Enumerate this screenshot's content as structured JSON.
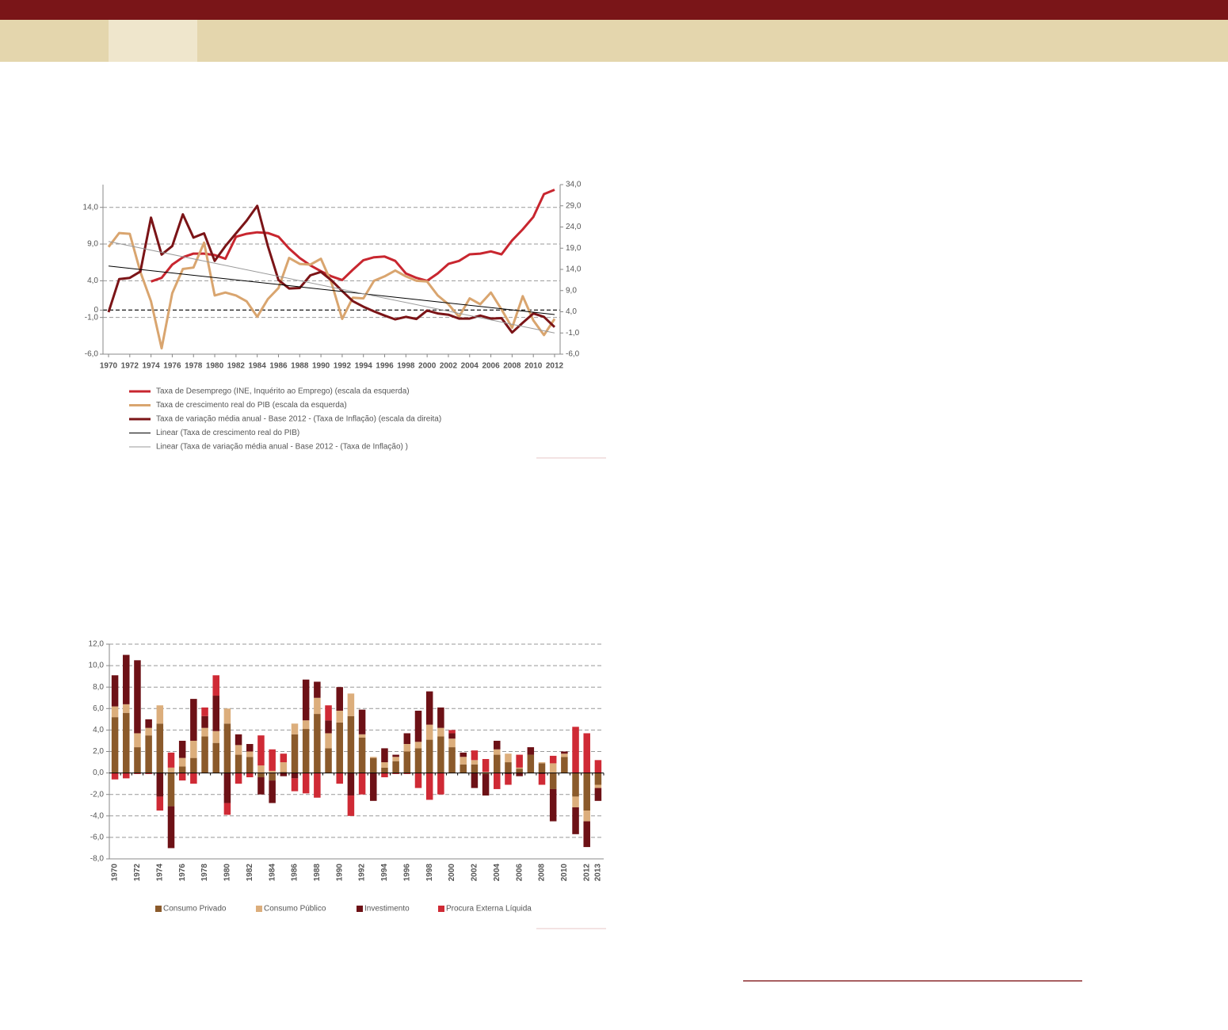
{
  "chart_data": [
    {
      "type": "line",
      "x": [
        1970,
        1971,
        1972,
        1973,
        1974,
        1975,
        1976,
        1977,
        1978,
        1979,
        1980,
        1981,
        1982,
        1983,
        1984,
        1985,
        1986,
        1987,
        1988,
        1989,
        1990,
        1991,
        1992,
        1993,
        1994,
        1995,
        1996,
        1997,
        1998,
        1999,
        2000,
        2001,
        2002,
        2003,
        2004,
        2005,
        2006,
        2007,
        2008,
        2009,
        2010,
        2011,
        2012
      ],
      "xlim": [
        1970,
        2012
      ],
      "xticks": [
        1970,
        1972,
        1974,
        1976,
        1978,
        1980,
        1982,
        1984,
        1986,
        1988,
        1990,
        1992,
        1994,
        1996,
        1998,
        2000,
        2002,
        2004,
        2006,
        2008,
        2010,
        2012
      ],
      "ylim": [
        -6,
        17.1
      ],
      "yticks": [
        {
          "value": -6,
          "label": "-6,0"
        },
        {
          "value": -1,
          "label": "-1,0"
        },
        0,
        {
          "value": 4,
          "label": "4,0"
        },
        {
          "value": 9,
          "label": "9,0"
        },
        {
          "value": 14,
          "label": "14,0"
        }
      ],
      "y2lim": [
        -6,
        34
      ],
      "y2ticks": [
        {
          "value": -6,
          "label": "-6,0"
        },
        {
          "value": -1,
          "label": "-1,0"
        },
        {
          "value": 4,
          "label": "4,0"
        },
        {
          "value": 9,
          "label": "9,0"
        },
        {
          "value": 14,
          "label": "14,0"
        },
        {
          "value": 19,
          "label": "19,0"
        },
        {
          "value": 24,
          "label": "24,0"
        },
        {
          "value": 29,
          "label": "29,0"
        },
        {
          "value": 34,
          "label": "34,0"
        }
      ],
      "grid": true,
      "series": [
        {
          "name": "Taxa de Desemprego (INE, Inquérito ao Emprego) (escala da esquerda)",
          "color": "#c8262f",
          "width": 3,
          "values": [
            null,
            null,
            null,
            null,
            3.9,
            4.4,
            6.2,
            7.2,
            7.7,
            7.7,
            7.5,
            7.0,
            10.0,
            10.4,
            10.6,
            10.5,
            10.0,
            8.4,
            7.1,
            6.1,
            5.3,
            4.6,
            4.1,
            5.5,
            6.8,
            7.2,
            7.3,
            6.7,
            5.0,
            4.4,
            4.0,
            5.0,
            6.3,
            6.7,
            7.6,
            7.7,
            8.0,
            7.6,
            9.5,
            11.0,
            12.7,
            15.8,
            16.4
          ]
        },
        {
          "name": "Taxa de crescimento real do PIB (escala da esquerda)",
          "color": "#d9a56f",
          "width": 3,
          "values": [
            8.6,
            10.5,
            10.4,
            5.2,
            1.2,
            -5.2,
            2.3,
            5.6,
            5.8,
            9.2,
            2.0,
            2.4,
            2.0,
            1.2,
            -0.9,
            1.5,
            3.0,
            7.1,
            6.3,
            6.2,
            7.0,
            3.7,
            -1.2,
            1.7,
            1.6,
            4.0,
            4.6,
            5.4,
            4.6,
            4.0,
            3.9,
            2.0,
            0.8,
            -0.9,
            1.6,
            0.8,
            2.4,
            0.1,
            -2.4,
            1.9,
            -1.4,
            -3.4,
            -1.2
          ]
        },
        {
          "name": "Taxa de variação média anual - Base 2012 - (Taxa de Inflação) (escala da direita)",
          "color": "#7b1417",
          "width": 3,
          "axis": "y2",
          "values": [
            3.9,
            11.7,
            12.0,
            13.5,
            26.2,
            17.5,
            19.5,
            27.0,
            21.5,
            22.5,
            16.0,
            19.5,
            22.5,
            25.5,
            29.0,
            19.5,
            11.5,
            9.5,
            9.6,
            12.6,
            13.4,
            11.4,
            8.9,
            6.5,
            5.2,
            4.1,
            3.1,
            2.2,
            2.8,
            2.3,
            4.3,
            3.6,
            3.3,
            2.4,
            2.4,
            3.1,
            2.4,
            2.5,
            -0.9,
            1.4,
            3.6,
            2.8,
            0.4
          ]
        },
        {
          "name": "Linear (Taxa de crescimento real do PIB)",
          "color": "#000000",
          "width": 1,
          "x": [
            1970,
            2012
          ],
          "values": [
            6.0,
            -0.6
          ]
        },
        {
          "name": "Linear (Taxa de variação média anual - Base 2012 - (Taxa de Inflação) )",
          "color": "#999999",
          "width": 1,
          "axis": "y2",
          "x": [
            1970,
            2012
          ],
          "values": [
            20.6,
            -1.0
          ]
        }
      ]
    },
    {
      "type": "stacked_bar",
      "categories": [
        "1970",
        null,
        "1972",
        null,
        "1974",
        null,
        "1976",
        null,
        "1978",
        null,
        "1980",
        null,
        "1982",
        null,
        "1984",
        null,
        "1986",
        null,
        "1988",
        null,
        "1990",
        null,
        "1992",
        null,
        "1994",
        null,
        "1996",
        null,
        "1998",
        null,
        "2000",
        null,
        "2002",
        null,
        "2004",
        null,
        "2006",
        null,
        "2008",
        null,
        "2010",
        null,
        "2012",
        "2013"
      ],
      "ylim": [
        -8,
        12
      ],
      "yticks": [
        {
          "value": -8,
          "label": "-8,0"
        },
        {
          "value": -6,
          "label": "-6,0"
        },
        {
          "value": -4,
          "label": "-4,0"
        },
        {
          "value": -2,
          "label": "-2,0"
        },
        {
          "value": 0,
          "label": "0,0"
        },
        {
          "value": 2,
          "label": "2,0"
        },
        {
          "value": 4,
          "label": "4,0"
        },
        {
          "value": 6,
          "label": "6,0"
        },
        {
          "value": 8,
          "label": "8,0"
        },
        {
          "value": 10,
          "label": "10,0"
        },
        {
          "value": 12,
          "label": "12,0"
        }
      ],
      "grid": true,
      "series": [
        {
          "name": "Consumo Privado",
          "color": "#8b5a2b",
          "values": [
            5.2,
            5.6,
            2.4,
            3.5,
            4.6,
            -3.1,
            0.6,
            1.4,
            3.4,
            2.8,
            4.6,
            1.7,
            1.5,
            -0.4,
            -0.7,
            0.1,
            3.6,
            4.1,
            5.5,
            2.3,
            4.7,
            5.3,
            3.3,
            1.4,
            0.5,
            1.1,
            2.0,
            2.3,
            3.1,
            3.4,
            2.4,
            0.8,
            0.8,
            -0.1,
            1.7,
            1.0,
            0.4,
            1.7,
            0.9,
            -1.5,
            1.5,
            -2.2,
            -3.5,
            -1.1
          ]
        },
        {
          "name": "Consumo Público",
          "color": "#dcae7c",
          "values": [
            1.0,
            0.8,
            1.3,
            0.7,
            1.7,
            0.5,
            0.8,
            1.6,
            0.8,
            1.1,
            1.4,
            0.9,
            0.5,
            0.7,
            0.2,
            0.9,
            1.0,
            0.8,
            1.5,
            1.4,
            1.1,
            2.1,
            0.3,
            0.1,
            0.5,
            0.4,
            0.7,
            0.6,
            1.4,
            0.8,
            0.8,
            0.7,
            0.4,
            0.1,
            0.5,
            0.8,
            0.1,
            0.0,
            0.1,
            0.9,
            0.3,
            -1.0,
            -1.0,
            -0.3
          ]
        },
        {
          "name": "Investimento",
          "color": "#6d1116",
          "values": [
            2.9,
            4.6,
            6.8,
            0.8,
            -2.2,
            -3.9,
            1.6,
            3.9,
            1.1,
            3.3,
            -2.8,
            1.0,
            0.7,
            -1.6,
            -2.1,
            -0.3,
            -0.5,
            3.8,
            1.5,
            1.2,
            2.2,
            -2.1,
            2.3,
            -2.6,
            1.3,
            0.2,
            1.0,
            2.9,
            3.1,
            1.9,
            0.5,
            0.4,
            -1.4,
            -2.0,
            0.8,
            -0.1,
            -0.3,
            0.7,
            -0.1,
            -3.0,
            0.2,
            -2.5,
            -2.4,
            -1.2
          ]
        },
        {
          "name": "Procura Externa Líquida",
          "color": "#cf2a35",
          "values": [
            -0.6,
            -0.5,
            -0.1,
            -0.1,
            -1.3,
            1.4,
            -0.7,
            -1.0,
            0.8,
            1.9,
            -1.1,
            -1.0,
            -0.4,
            2.8,
            2.0,
            0.8,
            -1.2,
            -1.9,
            -2.3,
            1.4,
            -1.0,
            -1.9,
            -2.0,
            0.0,
            -0.4,
            -0.1,
            -0.1,
            -1.4,
            -2.5,
            -2.0,
            0.3,
            0.0,
            0.9,
            1.2,
            -1.5,
            -1.0,
            1.2,
            0.0,
            -1.0,
            0.7,
            0.0,
            4.3,
            3.7,
            1.2
          ]
        }
      ]
    }
  ]
}
